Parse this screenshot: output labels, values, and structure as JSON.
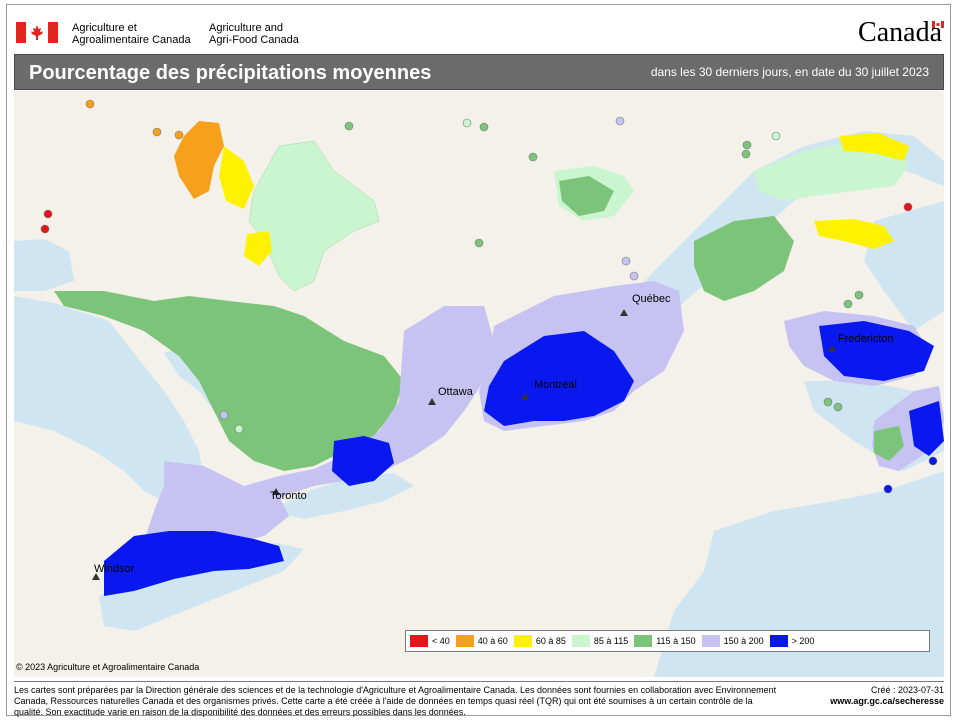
{
  "header": {
    "dept_fr_line1": "Agriculture et",
    "dept_fr_line2": "Agroalimentaire Canada",
    "dept_en_line1": "Agriculture and",
    "dept_en_line2": "Agri-Food Canada",
    "wordmark": "Canada"
  },
  "titlebar": {
    "title": "Pourcentage des précipitations moyennes",
    "subtitle": "dans les 30 derniers jours, en date du 30 juillet 2023"
  },
  "map": {
    "cities": [
      {
        "name": "Québec"
      },
      {
        "name": "Fredericton"
      },
      {
        "name": "Ottawa"
      },
      {
        "name": "Montréal"
      },
      {
        "name": "Toronto"
      },
      {
        "name": "Windsor"
      }
    ],
    "colors": {
      "lt40": "#e8141b",
      "r40_60": "#f7a01c",
      "r60_85": "#fff200",
      "r85_115": "#c9f5cf",
      "r115_150": "#7cc47a",
      "r150_200": "#c6c3f3",
      "gt200": "#0a18f0",
      "water": "#cfe6f2",
      "land": "#f4f1ea"
    }
  },
  "legend": {
    "items": [
      {
        "label": "< 40",
        "color": "#e8141b"
      },
      {
        "label": "40 à 60",
        "color": "#f7a01c"
      },
      {
        "label": "60 à 85",
        "color": "#fff200"
      },
      {
        "label": "85 à 115",
        "color": "#c9f5cf"
      },
      {
        "label": "115 à 150",
        "color": "#7cc47a"
      },
      {
        "label": "150 à 200",
        "color": "#c6c3f3"
      },
      {
        "label": "> 200",
        "color": "#0a18f0"
      }
    ]
  },
  "copyright": "© 2023 Agriculture et Agroalimentaire Canada",
  "footer": {
    "text": "Les cartes sont préparées par la Direction générale des sciences et de la technologie d'Agriculture et Agroalimentaire Canada. Les données sont fournies en collaboration avec Environnement Canada, Ressources naturelles Canada et des organismes privés. Cette carte a été créée à l'aide de données en temps quasi réel (TQR) qui ont été soumises à un certain contrôle de la qualité. Son exactitude varie en raison de la disponibilité des données et des erreurs possibles dans les données.",
    "created": "Créé : 2023-07-31",
    "website": "www.agr.gc.ca/secheresse"
  }
}
